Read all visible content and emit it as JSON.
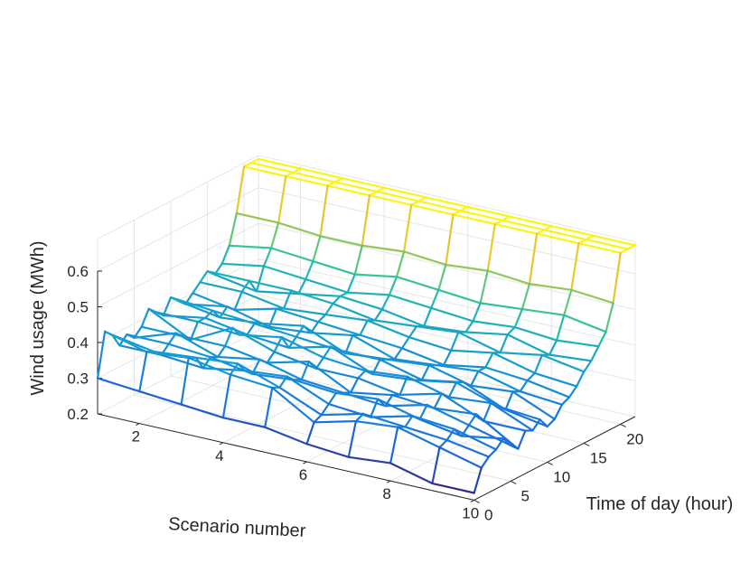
{
  "chart_data": {
    "type": "surface",
    "title": "",
    "xlabel": "Scenario number",
    "ylabel": "Time of day (hour)",
    "zlabel": "Wind usage (MWh)",
    "xlim": [
      1,
      10
    ],
    "ylim": [
      0,
      22
    ],
    "zlim": [
      0.2,
      0.6
    ],
    "xticks": [
      "2",
      "4",
      "6",
      "8",
      "10"
    ],
    "yticks": [
      "0",
      "5",
      "10",
      "15",
      "20"
    ],
    "zticks": [
      "0.2",
      "0.3",
      "0.4",
      "0.5",
      "0.6"
    ],
    "grid": true,
    "colormap": "parula",
    "scenarios": [
      1,
      2,
      3,
      4,
      5,
      6,
      7,
      8,
      9,
      10
    ],
    "hours": [
      0,
      1,
      2,
      3,
      4,
      5,
      6,
      7,
      8,
      9,
      10,
      11,
      12,
      13,
      14,
      15,
      16,
      17,
      18,
      19,
      20,
      21,
      22
    ],
    "values": [
      [
        0.3,
        0.42,
        0.4,
        0.36,
        0.38,
        0.36,
        0.38,
        0.42,
        0.4,
        0.38,
        0.42,
        0.4,
        0.38,
        0.4,
        0.42,
        0.44,
        0.42,
        0.44,
        0.48,
        0.56,
        0.68,
        0.68,
        0.68
      ],
      [
        0.29,
        0.39,
        0.38,
        0.36,
        0.38,
        0.4,
        0.38,
        0.36,
        0.4,
        0.4,
        0.41,
        0.38,
        0.4,
        0.38,
        0.42,
        0.44,
        0.4,
        0.46,
        0.5,
        0.56,
        0.68,
        0.68,
        0.68
      ],
      [
        0.28,
        0.4,
        0.39,
        0.35,
        0.37,
        0.36,
        0.38,
        0.42,
        0.39,
        0.38,
        0.4,
        0.39,
        0.37,
        0.41,
        0.4,
        0.44,
        0.42,
        0.45,
        0.49,
        0.55,
        0.68,
        0.68,
        0.68
      ],
      [
        0.27,
        0.38,
        0.4,
        0.37,
        0.35,
        0.38,
        0.36,
        0.38,
        0.41,
        0.37,
        0.39,
        0.41,
        0.38,
        0.4,
        0.41,
        0.43,
        0.44,
        0.44,
        0.48,
        0.55,
        0.68,
        0.68,
        0.68
      ],
      [
        0.27,
        0.37,
        0.36,
        0.38,
        0.36,
        0.35,
        0.39,
        0.36,
        0.38,
        0.4,
        0.38,
        0.36,
        0.4,
        0.39,
        0.42,
        0.41,
        0.43,
        0.46,
        0.5,
        0.56,
        0.68,
        0.68,
        0.68
      ],
      [
        0.25,
        0.3,
        0.31,
        0.33,
        0.35,
        0.34,
        0.33,
        0.36,
        0.37,
        0.35,
        0.38,
        0.37,
        0.36,
        0.38,
        0.4,
        0.42,
        0.41,
        0.45,
        0.49,
        0.55,
        0.68,
        0.68,
        0.68
      ],
      [
        0.24,
        0.33,
        0.34,
        0.32,
        0.36,
        0.33,
        0.35,
        0.34,
        0.38,
        0.36,
        0.35,
        0.38,
        0.37,
        0.36,
        0.39,
        0.43,
        0.42,
        0.44,
        0.48,
        0.56,
        0.68,
        0.68,
        0.68
      ],
      [
        0.25,
        0.34,
        0.33,
        0.35,
        0.33,
        0.36,
        0.34,
        0.37,
        0.35,
        0.38,
        0.37,
        0.35,
        0.38,
        0.38,
        0.41,
        0.4,
        0.44,
        0.45,
        0.49,
        0.55,
        0.68,
        0.68,
        0.68
      ],
      [
        0.22,
        0.31,
        0.32,
        0.34,
        0.31,
        0.33,
        0.35,
        0.32,
        0.36,
        0.34,
        0.32,
        0.36,
        0.35,
        0.37,
        0.38,
        0.42,
        0.41,
        0.44,
        0.5,
        0.56,
        0.68,
        0.68,
        0.68
      ],
      [
        0.22,
        0.28,
        0.3,
        0.31,
        0.33,
        0.3,
        0.28,
        0.32,
        0.31,
        0.33,
        0.3,
        0.31,
        0.34,
        0.35,
        0.37,
        0.4,
        0.42,
        0.45,
        0.48,
        0.55,
        0.68,
        0.68,
        0.68
      ]
    ]
  }
}
